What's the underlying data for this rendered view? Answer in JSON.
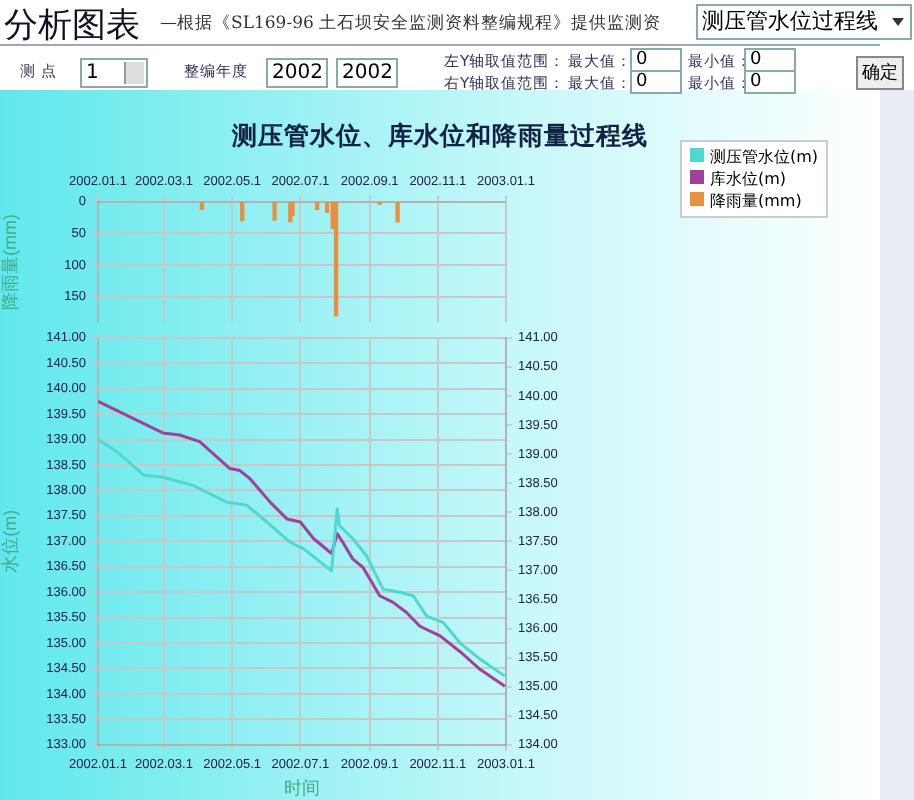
{
  "chart_data": [
    {
      "type": "bar",
      "title": "测压管水位、库水位和降雨量过程线",
      "ylabel": "降雨量(mm)",
      "annotations": [
        "分析图表",
        "—根据《SL169-96 土石坝安全监测资料整编规程》提供监测资",
        "测压管水位过程线",
        "测 点",
        "1",
        "整编年度",
        "2002",
        "2002",
        "左Y轴取值范围：",
        "最大值：",
        "0",
        "最小值：",
        "0",
        "右Y轴取值范围：",
        "最大值：",
        "0",
        "最小值：",
        "0",
        "确定"
      ],
      "series": [
        {
          "name": "降雨量(mm)",
          "color": "#e89040",
          "x": [
            "2002-04-04",
            "2002-05-10",
            "2002-06-08",
            "2002-06-22",
            "2002-06-24",
            "2002-07-16",
            "2002-07-25",
            "2002-07-30",
            "2002-08-02",
            "2002-09-10",
            "2002-09-26"
          ],
          "values": [
            12,
            30,
            29,
            32,
            22,
            12,
            17,
            42,
            180,
            4,
            32
          ]
        }
      ],
      "xlim": [
        "2002-01-01",
        "2003-01-01"
      ],
      "xticks": [
        {
          "value": "2002-01-01",
          "label": "2002.01.1"
        },
        {
          "value": "2002-03-01",
          "label": "2002.03.1"
        },
        {
          "value": "2002-05-01",
          "label": "2002.05.1"
        },
        {
          "value": "2002-07-01",
          "label": "2002.07.1"
        },
        {
          "value": "2002-09-01",
          "label": "2002.09.1"
        },
        {
          "value": "2002-11-01",
          "label": "2002.11.1"
        },
        {
          "value": "2003-01-01",
          "label": "2003.01.1"
        }
      ],
      "ylim": [
        190,
        0
      ],
      "yticks": [
        0,
        50,
        100,
        150
      ],
      "grid": true
    },
    {
      "type": "line",
      "legend": "top right",
      "xlabel": "时间",
      "ylabel": "水位(m)",
      "marker": "none",
      "line_style": "solid",
      "grid": true,
      "series": [
        {
          "name": "测压管水位(m)",
          "color": "#50d8d0",
          "x": [
            "2002-01-01",
            "2002-01-18",
            "2002-02-11",
            "2002-02-28",
            "2002-03-27",
            "2002-04-26",
            "2002-05-14",
            "2002-06-01",
            "2002-06-22",
            "2002-07-04",
            "2002-07-29",
            "2002-08-03",
            "2002-08-05",
            "2002-08-17",
            "2002-08-29",
            "2002-09-13",
            "2002-09-28",
            "2002-10-10",
            "2002-10-22",
            "2002-11-06",
            "2002-11-21",
            "2002-12-09",
            "2002-12-31"
          ],
          "values": [
            139.0,
            138.76,
            138.3,
            138.26,
            138.1,
            137.77,
            137.71,
            137.38,
            136.98,
            136.85,
            136.42,
            137.64,
            137.31,
            137.05,
            136.72,
            136.06,
            136.0,
            135.93,
            135.53,
            135.4,
            135.0,
            134.68,
            134.35
          ]
        },
        {
          "name": "库水位(m)",
          "color": "#a0409a",
          "x": [
            "2002-01-01",
            "2002-02-28",
            "2002-03-15",
            "2002-04-02",
            "2002-04-29",
            "2002-05-08",
            "2002-05-17",
            "2002-06-04",
            "2002-06-19",
            "2002-07-01",
            "2002-07-13",
            "2002-07-29",
            "2002-08-03",
            "2002-08-08",
            "2002-08-17",
            "2002-08-26",
            "2002-09-10",
            "2002-09-22",
            "2002-10-04",
            "2002-10-16",
            "2002-11-03",
            "2002-11-21",
            "2002-12-09",
            "2002-12-31"
          ],
          "values": [
            139.75,
            139.13,
            139.09,
            138.96,
            138.43,
            138.39,
            138.23,
            137.77,
            137.44,
            137.38,
            137.05,
            136.76,
            137.15,
            136.98,
            136.65,
            136.49,
            135.93,
            135.8,
            135.6,
            135.33,
            135.14,
            134.83,
            134.48,
            134.15
          ]
        }
      ],
      "xlim": [
        "2002-01-01",
        "2003-01-01"
      ],
      "xticks": [
        {
          "value": "2002-01-01",
          "label": "2002.01.1"
        },
        {
          "value": "2002-03-01",
          "label": "2002.03.1"
        },
        {
          "value": "2002-05-01",
          "label": "2002.05.1"
        },
        {
          "value": "2002-07-01",
          "label": "2002.07.1"
        },
        {
          "value": "2002-09-01",
          "label": "2002.09.1"
        },
        {
          "value": "2002-11-01",
          "label": "2002.11.1"
        },
        {
          "value": "2003-01-01",
          "label": "2003.01.1"
        }
      ],
      "ylim": [
        133,
        141
      ],
      "yticks": [
        {
          "value": 133,
          "label": "133.00"
        },
        {
          "value": 133.5,
          "label": "133.50"
        },
        {
          "value": 134,
          "label": "134.00"
        },
        {
          "value": 134.5,
          "label": "134.50"
        },
        {
          "value": 135,
          "label": "135.00"
        },
        {
          "value": 135.5,
          "label": "135.50"
        },
        {
          "value": 136,
          "label": "136.00"
        },
        {
          "value": 136.5,
          "label": "136.50"
        },
        {
          "value": 137,
          "label": "137.00"
        },
        {
          "value": 137.5,
          "label": "137.50"
        },
        {
          "value": 138,
          "label": "138.00"
        },
        {
          "value": 138.5,
          "label": "138.50"
        },
        {
          "value": 139,
          "label": "139.00"
        },
        {
          "value": 139.5,
          "label": "139.50"
        },
        {
          "value": 140,
          "label": "140.00"
        },
        {
          "value": 140.5,
          "label": "140.50"
        },
        {
          "value": 141,
          "label": "141.00"
        }
      ],
      "y2lim": [
        134,
        141
      ],
      "y2ticks": [
        {
          "value": 134,
          "label": "134.00"
        },
        {
          "value": 134.5,
          "label": "134.50"
        },
        {
          "value": 135,
          "label": "135.00"
        },
        {
          "value": 135.5,
          "label": "135.50"
        },
        {
          "value": 136,
          "label": "136.00"
        },
        {
          "value": 136.5,
          "label": "136.50"
        },
        {
          "value": 137,
          "label": "137.00"
        },
        {
          "value": 137.5,
          "label": "137.50"
        },
        {
          "value": 138,
          "label": "138.00"
        },
        {
          "value": 138.5,
          "label": "138.50"
        },
        {
          "value": 139,
          "label": "139.00"
        },
        {
          "value": 139.5,
          "label": "139.50"
        },
        {
          "value": 140,
          "label": "140.00"
        },
        {
          "value": 140.5,
          "label": "140.50"
        },
        {
          "value": 141,
          "label": "141.00"
        }
      ]
    }
  ]
}
